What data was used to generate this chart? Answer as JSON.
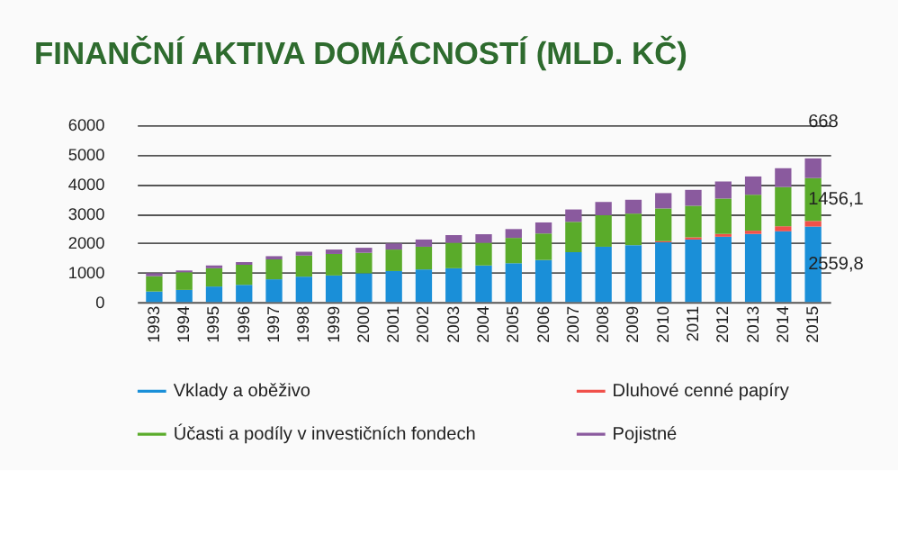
{
  "chart_data": {
    "type": "bar",
    "title": "FINANČNÍ AKTIVA DOMÁCNOSTÍ (MLD. KČ)",
    "stacked": true,
    "categories": [
      "1993",
      "1994",
      "1995",
      "1996",
      "1997",
      "1998",
      "1999",
      "2000",
      "2001",
      "2002",
      "2003",
      "2004",
      "2005",
      "2006",
      "2007",
      "2008",
      "2009",
      "2010",
      "2011",
      "2012",
      "2013",
      "2014",
      "2015"
    ],
    "series": [
      {
        "name": "Vklady a oběživo",
        "color": "#1a8fd8",
        "values": [
          356,
          410,
          525,
          580,
          770,
          860,
          900,
          975,
          1050,
          1105,
          1145,
          1240,
          1315,
          1425,
          1690,
          1875,
          1930,
          2025,
          2120,
          2215,
          2310,
          2400,
          2559.8
        ],
        "value_labels": [
          null,
          null,
          null,
          null,
          null,
          null,
          null,
          null,
          null,
          null,
          null,
          null,
          null,
          null,
          null,
          null,
          null,
          null,
          null,
          null,
          null,
          null,
          "2559,8"
        ]
      },
      {
        "name": "Dluhové cenné papíry",
        "color": "#f0504a",
        "values": [
          0,
          0,
          0,
          0,
          0,
          0,
          0,
          0,
          0,
          0,
          0,
          0,
          0,
          0,
          0,
          0,
          null,
          40,
          75,
          95,
          110,
          170,
          190
        ]
      },
      {
        "name": "Účasti a podíly v investičních fondech",
        "color": "#5aab2a",
        "values": [
          520,
          600,
          620,
          680,
          675,
          715,
          730,
          695,
          730,
          770,
          865,
          770,
          860,
          900,
          1030,
          1070,
          1070,
          1110,
          1070,
          1200,
          1220,
          1330,
          1456.1
        ],
        "value_labels": [
          null,
          null,
          null,
          null,
          null,
          null,
          null,
          null,
          null,
          null,
          null,
          null,
          null,
          null,
          null,
          null,
          null,
          null,
          null,
          null,
          null,
          null,
          "1456,1"
        ]
      },
      {
        "name": "Pojistné",
        "color": "#8a5a9e",
        "values": [
          100,
          60,
          95,
          95,
          110,
          130,
          150,
          170,
          205,
          245,
          260,
          290,
          300,
          375,
          420,
          450,
          470,
          520,
          540,
          580,
          620,
          640,
          668
        ],
        "value_labels": [
          null,
          null,
          null,
          null,
          null,
          null,
          null,
          null,
          null,
          null,
          null,
          null,
          null,
          null,
          null,
          null,
          null,
          null,
          null,
          null,
          null,
          null,
          "668"
        ]
      }
    ],
    "ylim": [
      0,
      6000
    ],
    "yticks": [
      0,
      1000,
      2000,
      3000,
      4000,
      5000,
      6000
    ],
    "grid": "y",
    "legend": "bottom"
  }
}
